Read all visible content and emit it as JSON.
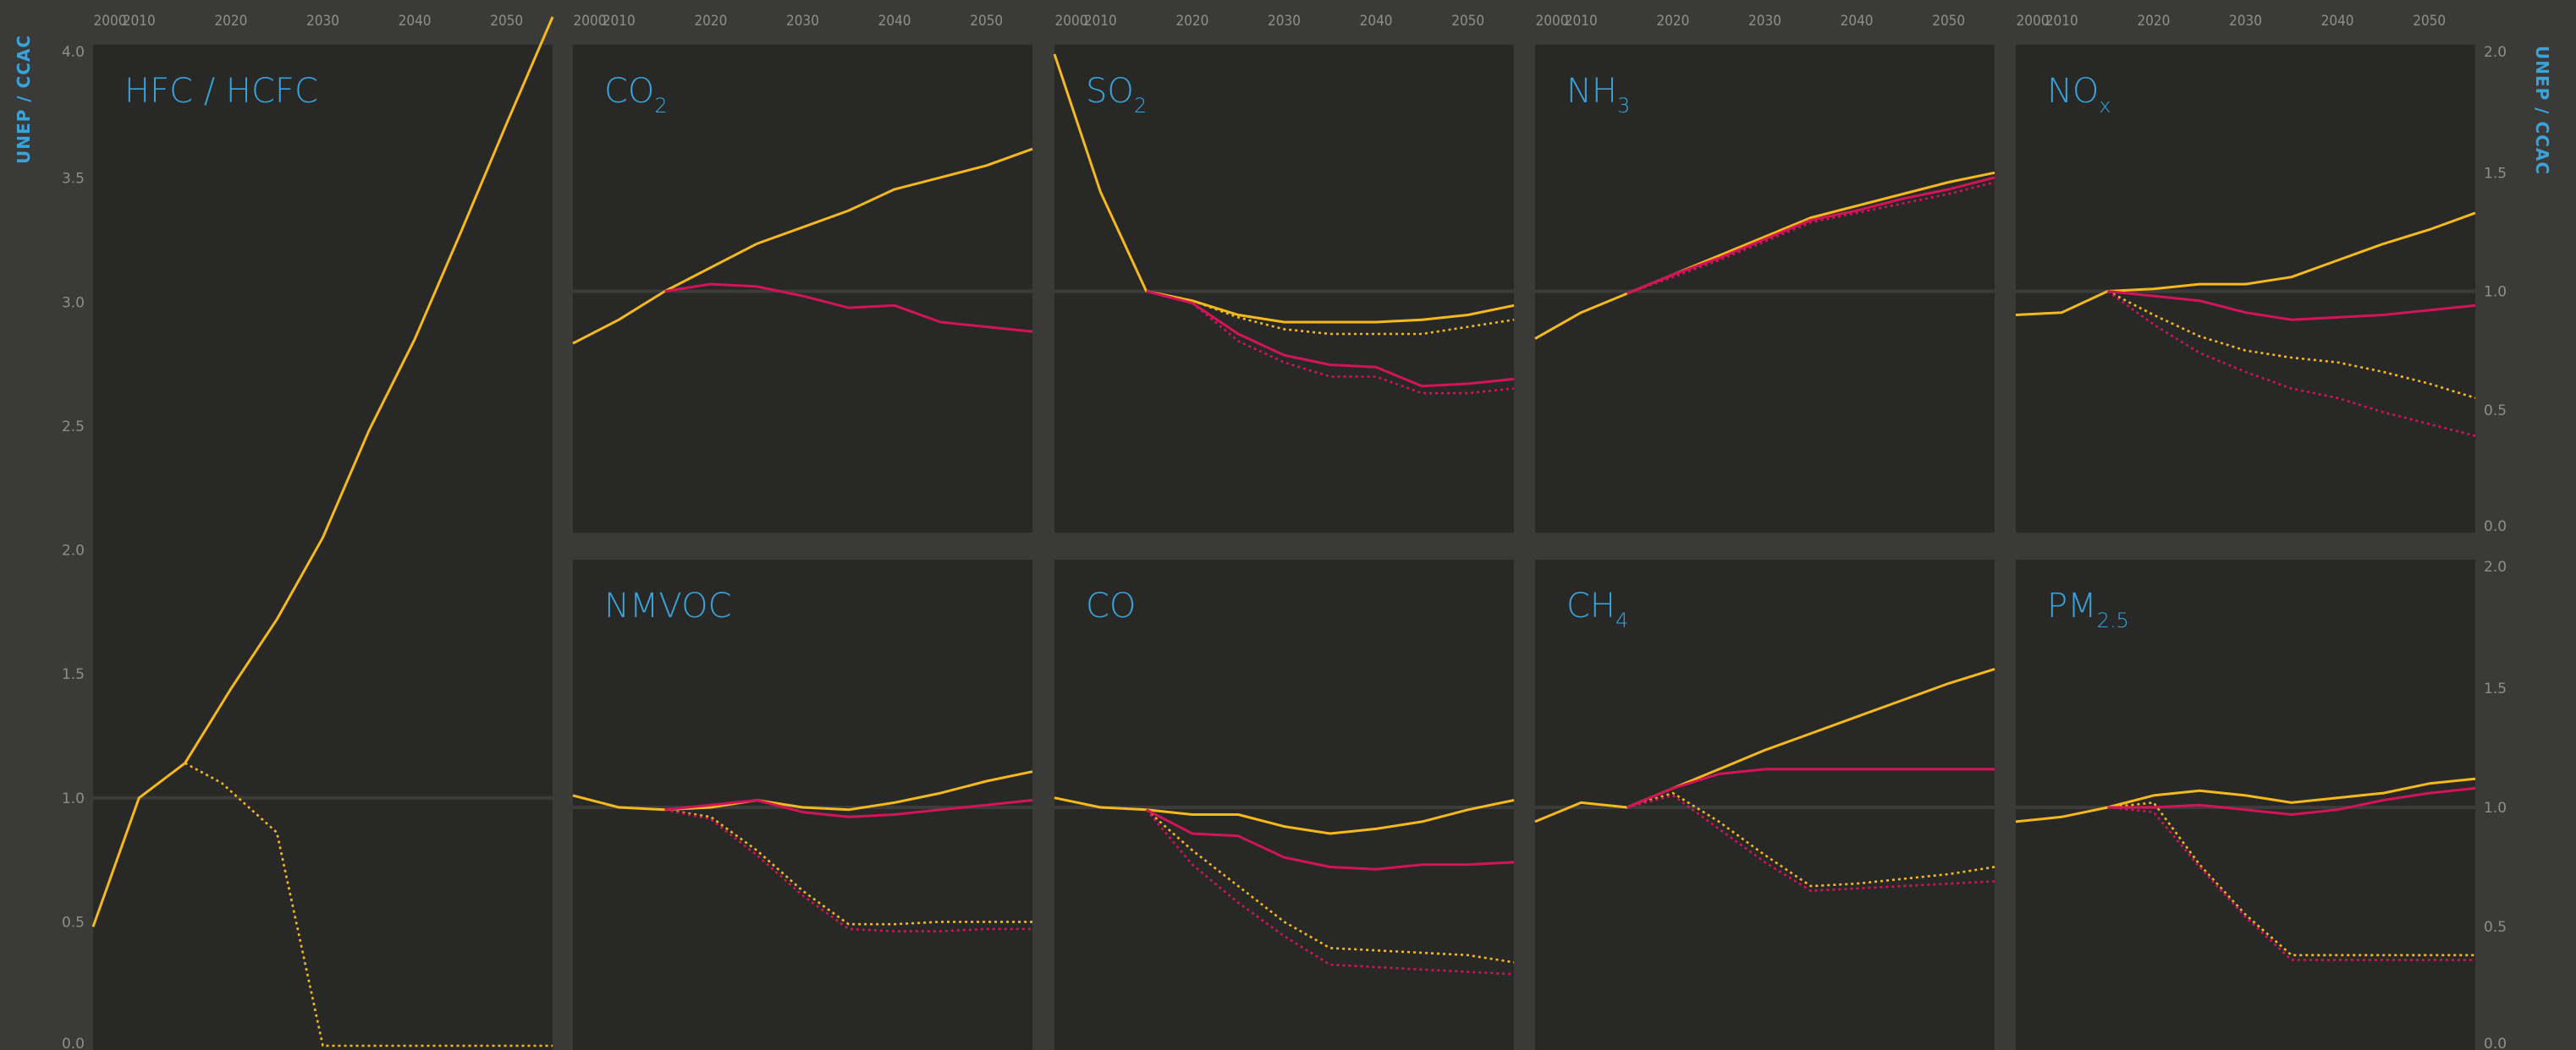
{
  "side_label_left": "UNEP / CCAC",
  "side_label_right": "UNEP / CCAC",
  "colors": {
    "page": "#3a3a39",
    "panel": "#282827",
    "title": "#3aa3da",
    "tick": "#8e8e8c",
    "gridline": "#3c3c3b",
    "series_yellow": "#f6b91c",
    "series_red": "#d4145a"
  },
  "chart_data": [
    {
      "type": "line",
      "title": "HFC / HCFC",
      "title_sub": "",
      "xlim": [
        2005,
        2055
      ],
      "ylim": [
        0,
        4
      ],
      "x_ticks": [
        "2000",
        "2010",
        "2020",
        "2030",
        "2040",
        "2050"
      ],
      "y_ticks": [
        "0.0",
        "0.5",
        "1.0",
        "1.5",
        "2.0",
        "2.5",
        "3.0",
        "3.5",
        "4.0"
      ],
      "series": [
        {
          "color": "yellow",
          "style": "solid",
          "x": [
            2005,
            2010,
            2015,
            2020,
            2025,
            2030,
            2035,
            2040,
            2045,
            2050,
            2055
          ],
          "y": [
            0.48,
            1.0,
            1.14,
            1.44,
            1.72,
            2.05,
            2.48,
            2.85,
            3.28,
            3.72,
            4.15
          ]
        },
        {
          "color": "yellow",
          "style": "dotted",
          "x": [
            2015,
            2019,
            2025,
            2030,
            2035,
            2040,
            2045,
            2055
          ],
          "y": [
            1.14,
            1.06,
            0.86,
            0.0,
            0.0,
            0.0,
            0.0,
            0.0
          ]
        }
      ]
    },
    {
      "type": "line",
      "title": "CO",
      "title_sub": "2",
      "xlim": [
        2005,
        2055
      ],
      "ylim": [
        0,
        2
      ],
      "x_ticks": [
        "2000",
        "2010",
        "2020",
        "2030",
        "2040",
        "2050"
      ],
      "series": [
        {
          "color": "yellow",
          "style": "solid",
          "x": [
            2005,
            2010,
            2015,
            2020,
            2025,
            2030,
            2035,
            2040,
            2045,
            2050,
            2055
          ],
          "y": [
            0.78,
            0.88,
            1.0,
            1.1,
            1.2,
            1.27,
            1.34,
            1.43,
            1.48,
            1.53,
            1.6
          ]
        },
        {
          "color": "red",
          "style": "solid",
          "x": [
            2015,
            2020,
            2025,
            2030,
            2035,
            2040,
            2045,
            2050,
            2055
          ],
          "y": [
            1.0,
            1.03,
            1.02,
            0.98,
            0.93,
            0.94,
            0.87,
            0.85,
            0.83
          ]
        }
      ]
    },
    {
      "type": "line",
      "title": "SO",
      "title_sub": "2",
      "xlim": [
        2005,
        2055
      ],
      "ylim": [
        0,
        2
      ],
      "x_ticks": [
        "2000",
        "2010",
        "2020",
        "2030",
        "2040",
        "2050"
      ],
      "series": [
        {
          "color": "yellow",
          "style": "solid",
          "x": [
            2005,
            2010,
            2015,
            2020,
            2025,
            2030,
            2035,
            2040,
            2045,
            2050,
            2055
          ],
          "y": [
            2.0,
            1.42,
            1.0,
            0.96,
            0.9,
            0.87,
            0.87,
            0.87,
            0.88,
            0.9,
            0.94
          ]
        },
        {
          "color": "yellow",
          "style": "dotted",
          "x": [
            2015,
            2020,
            2025,
            2030,
            2035,
            2040,
            2045,
            2050,
            2055
          ],
          "y": [
            1.0,
            0.96,
            0.89,
            0.84,
            0.82,
            0.82,
            0.82,
            0.85,
            0.88
          ]
        },
        {
          "color": "red",
          "style": "solid",
          "x": [
            2015,
            2020,
            2025,
            2030,
            2035,
            2040,
            2045,
            2050,
            2055
          ],
          "y": [
            1.0,
            0.95,
            0.82,
            0.73,
            0.69,
            0.68,
            0.6,
            0.61,
            0.63
          ]
        },
        {
          "color": "red",
          "style": "dotted",
          "x": [
            2015,
            2020,
            2025,
            2030,
            2035,
            2040,
            2045,
            2050,
            2055
          ],
          "y": [
            1.0,
            0.95,
            0.79,
            0.7,
            0.64,
            0.64,
            0.57,
            0.57,
            0.59
          ]
        }
      ]
    },
    {
      "type": "line",
      "title": "NH",
      "title_sub": "3",
      "xlim": [
        2005,
        2055
      ],
      "ylim": [
        0,
        2
      ],
      "x_ticks": [
        "2000",
        "2010",
        "2020",
        "2030",
        "2040",
        "2050"
      ],
      "series": [
        {
          "color": "yellow",
          "style": "solid",
          "x": [
            2005,
            2010,
            2015,
            2020,
            2025,
            2030,
            2035,
            2040,
            2045,
            2050,
            2055
          ],
          "y": [
            0.8,
            0.91,
            0.99,
            1.07,
            1.15,
            1.23,
            1.31,
            1.36,
            1.41,
            1.46,
            1.5
          ]
        },
        {
          "color": "red",
          "style": "solid",
          "x": [
            2015,
            2020,
            2025,
            2030,
            2035,
            2040,
            2045,
            2050,
            2055
          ],
          "y": [
            0.99,
            1.07,
            1.14,
            1.22,
            1.3,
            1.34,
            1.39,
            1.43,
            1.48
          ]
        },
        {
          "color": "red",
          "style": "dotted",
          "x": [
            2015,
            2020,
            2025,
            2030,
            2035,
            2040,
            2045,
            2050,
            2055
          ],
          "y": [
            0.99,
            1.06,
            1.13,
            1.21,
            1.29,
            1.33,
            1.37,
            1.41,
            1.46
          ]
        }
      ]
    },
    {
      "type": "line",
      "title": "NO",
      "title_sub": "x",
      "xlim": [
        2005,
        2055
      ],
      "ylim": [
        0,
        2
      ],
      "x_ticks": [
        "2000",
        "2010",
        "2020",
        "2030",
        "2040",
        "2050"
      ],
      "y_ticks_right": [
        "0.0",
        "0.5",
        "1.0",
        "1.5",
        "2.0"
      ],
      "series": [
        {
          "color": "yellow",
          "style": "solid",
          "x": [
            2005,
            2010,
            2015,
            2020,
            2025,
            2030,
            2035,
            2040,
            2045,
            2050,
            2055
          ],
          "y": [
            0.9,
            0.91,
            1.0,
            1.01,
            1.03,
            1.03,
            1.06,
            1.13,
            1.2,
            1.26,
            1.33
          ]
        },
        {
          "color": "yellow",
          "style": "dotted",
          "x": [
            2015,
            2020,
            2025,
            2030,
            2035,
            2040,
            2045,
            2050,
            2055
          ],
          "y": [
            1.0,
            0.9,
            0.81,
            0.75,
            0.72,
            0.7,
            0.66,
            0.61,
            0.55
          ]
        },
        {
          "color": "red",
          "style": "solid",
          "x": [
            2015,
            2020,
            2025,
            2030,
            2035,
            2040,
            2045,
            2050,
            2055
          ],
          "y": [
            1.0,
            0.98,
            0.96,
            0.91,
            0.88,
            0.89,
            0.9,
            0.92,
            0.94
          ]
        },
        {
          "color": "red",
          "style": "dotted",
          "x": [
            2015,
            2020,
            2025,
            2030,
            2035,
            2040,
            2045,
            2050,
            2055
          ],
          "y": [
            1.0,
            0.86,
            0.74,
            0.66,
            0.59,
            0.55,
            0.49,
            0.44,
            0.39
          ]
        }
      ]
    },
    {
      "type": "line",
      "title": "NMVOC",
      "title_sub": "",
      "xlim": [
        2005,
        2055
      ],
      "ylim": [
        0,
        2
      ],
      "series": [
        {
          "color": "yellow",
          "style": "solid",
          "x": [
            2005,
            2010,
            2015,
            2020,
            2025,
            2030,
            2035,
            2040,
            2045,
            2050,
            2055
          ],
          "y": [
            1.05,
            1.0,
            0.99,
            1.0,
            1.03,
            1.0,
            0.99,
            1.02,
            1.06,
            1.11,
            1.15
          ]
        },
        {
          "color": "yellow",
          "style": "dotted",
          "x": [
            2015,
            2020,
            2025,
            2030,
            2035,
            2040,
            2045,
            2050,
            2055
          ],
          "y": [
            0.99,
            0.96,
            0.82,
            0.65,
            0.51,
            0.51,
            0.52,
            0.52,
            0.52
          ]
        },
        {
          "color": "red",
          "style": "solid",
          "x": [
            2015,
            2020,
            2025,
            2030,
            2035,
            2040,
            2045,
            2050,
            2055
          ],
          "y": [
            0.99,
            1.01,
            1.03,
            0.98,
            0.96,
            0.97,
            0.99,
            1.01,
            1.03
          ]
        },
        {
          "color": "red",
          "style": "dotted",
          "x": [
            2015,
            2020,
            2025,
            2030,
            2035,
            2040,
            2045,
            2050,
            2055
          ],
          "y": [
            0.99,
            0.95,
            0.8,
            0.63,
            0.49,
            0.48,
            0.48,
            0.49,
            0.49
          ]
        }
      ]
    },
    {
      "type": "line",
      "title": "CO",
      "title_sub": "",
      "xlim": [
        2005,
        2055
      ],
      "ylim": [
        0,
        2
      ],
      "series": [
        {
          "color": "yellow",
          "style": "solid",
          "x": [
            2005,
            2010,
            2015,
            2020,
            2025,
            2030,
            2035,
            2040,
            2045,
            2050,
            2055
          ],
          "y": [
            1.04,
            1.0,
            0.99,
            0.97,
            0.97,
            0.92,
            0.89,
            0.91,
            0.94,
            0.99,
            1.03
          ]
        },
        {
          "color": "yellow",
          "style": "dotted",
          "x": [
            2015,
            2020,
            2025,
            2030,
            2035,
            2040,
            2045,
            2050,
            2055
          ],
          "y": [
            0.99,
            0.82,
            0.67,
            0.52,
            0.41,
            0.4,
            0.39,
            0.38,
            0.35
          ]
        },
        {
          "color": "red",
          "style": "solid",
          "x": [
            2015,
            2020,
            2025,
            2030,
            2035,
            2040,
            2045,
            2050,
            2055
          ],
          "y": [
            0.99,
            0.89,
            0.88,
            0.79,
            0.75,
            0.74,
            0.76,
            0.76,
            0.77
          ]
        },
        {
          "color": "red",
          "style": "dotted",
          "x": [
            2015,
            2020,
            2025,
            2030,
            2035,
            2040,
            2045,
            2050,
            2055
          ],
          "y": [
            0.99,
            0.76,
            0.6,
            0.46,
            0.34,
            0.33,
            0.32,
            0.31,
            0.3
          ]
        }
      ]
    },
    {
      "type": "line",
      "title": "CH",
      "title_sub": "4",
      "xlim": [
        2005,
        2055
      ],
      "ylim": [
        0,
        2
      ],
      "series": [
        {
          "color": "yellow",
          "style": "solid",
          "x": [
            2005,
            2010,
            2015,
            2020,
            2025,
            2030,
            2035,
            2040,
            2045,
            2050,
            2055
          ],
          "y": [
            0.94,
            1.02,
            1.0,
            1.08,
            1.16,
            1.24,
            1.31,
            1.38,
            1.45,
            1.52,
            1.58
          ]
        },
        {
          "color": "yellow",
          "style": "dotted",
          "x": [
            2015,
            2020,
            2025,
            2030,
            2035,
            2040,
            2045,
            2050,
            2055
          ],
          "y": [
            1.0,
            1.06,
            0.94,
            0.8,
            0.67,
            0.68,
            0.7,
            0.72,
            0.75
          ]
        },
        {
          "color": "red",
          "style": "solid",
          "x": [
            2015,
            2020,
            2025,
            2030,
            2035,
            2040,
            2045,
            2050,
            2055
          ],
          "y": [
            1.0,
            1.08,
            1.14,
            1.16,
            1.16,
            1.16,
            1.16,
            1.16,
            1.16
          ]
        },
        {
          "color": "red",
          "style": "dotted",
          "x": [
            2015,
            2020,
            2025,
            2030,
            2035,
            2040,
            2045,
            2050,
            2055
          ],
          "y": [
            1.0,
            1.05,
            0.91,
            0.77,
            0.65,
            0.66,
            0.67,
            0.68,
            0.69
          ]
        }
      ]
    },
    {
      "type": "line",
      "title": "PM",
      "title_sub": "2.5",
      "xlim": [
        2005,
        2055
      ],
      "ylim": [
        0,
        2
      ],
      "y_ticks_right": [
        "0.0",
        "0.5",
        "1.0",
        "1.5",
        "2.0"
      ],
      "series": [
        {
          "color": "yellow",
          "style": "solid",
          "x": [
            2005,
            2010,
            2015,
            2020,
            2025,
            2030,
            2035,
            2040,
            2045,
            2050,
            2055
          ],
          "y": [
            0.94,
            0.96,
            1.0,
            1.05,
            1.07,
            1.05,
            1.02,
            1.04,
            1.06,
            1.1,
            1.12
          ]
        },
        {
          "color": "yellow",
          "style": "dotted",
          "x": [
            2015,
            2020,
            2025,
            2030,
            2035,
            2040,
            2045,
            2050,
            2055
          ],
          "y": [
            1.0,
            1.02,
            0.76,
            0.55,
            0.38,
            0.38,
            0.38,
            0.38,
            0.38
          ]
        },
        {
          "color": "red",
          "style": "solid",
          "x": [
            2015,
            2020,
            2025,
            2030,
            2035,
            2040,
            2045,
            2050,
            2055
          ],
          "y": [
            1.0,
            1.0,
            1.01,
            0.99,
            0.97,
            0.99,
            1.03,
            1.06,
            1.08
          ]
        },
        {
          "color": "red",
          "style": "dotted",
          "x": [
            2015,
            2020,
            2025,
            2030,
            2035,
            2040,
            2045,
            2050,
            2055
          ],
          "y": [
            1.0,
            0.98,
            0.75,
            0.54,
            0.36,
            0.36,
            0.36,
            0.36,
            0.36
          ]
        }
      ]
    }
  ]
}
